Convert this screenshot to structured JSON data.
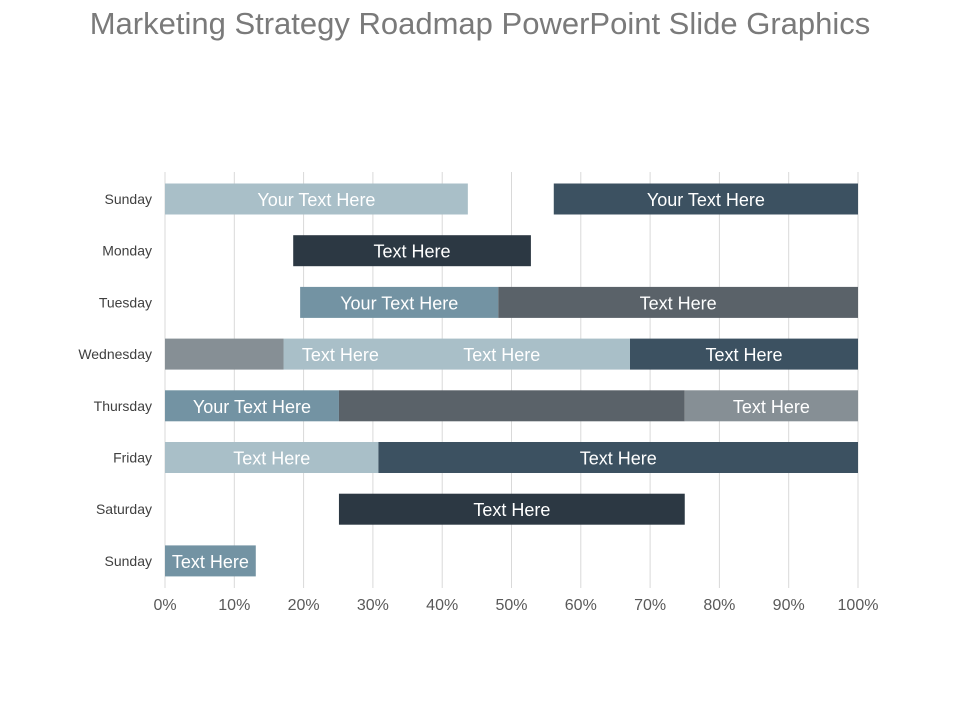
{
  "title": "Marketing Strategy Roadmap PowerPoint Slide Graphics",
  "colors": {
    "light": "#a9bfc8",
    "steel": "#7393a3",
    "gray": "#868f95",
    "slate": "#5a6269",
    "navy": "#3c5161",
    "dark": "#2c3843"
  },
  "chart_data": {
    "type": "bar",
    "orientation": "horizontal",
    "stacked": true,
    "title": "",
    "xlabel": "",
    "ylabel": "",
    "xlim": [
      0,
      100
    ],
    "x_ticks": [
      "0%",
      "10%",
      "20%",
      "30%",
      "40%",
      "50%",
      "60%",
      "70%",
      "80%",
      "90%",
      "100%"
    ],
    "grid": true,
    "legend": "none",
    "categories": [
      "Sunday",
      "Monday",
      "Tuesday",
      "Wednesday",
      "Thursday",
      "Friday",
      "Saturday",
      "Sunday"
    ],
    "rows": [
      {
        "category": "Sunday",
        "segments": [
          {
            "start": 0,
            "end": 43.7,
            "color": "light",
            "label": "Your Text Here"
          },
          {
            "start": 56.1,
            "end": 100,
            "color": "navy",
            "label": "Your Text Here"
          }
        ]
      },
      {
        "category": "Monday",
        "segments": [
          {
            "start": 18.5,
            "end": 52.8,
            "color": "dark",
            "label": "Text Here"
          }
        ]
      },
      {
        "category": "Tuesday",
        "segments": [
          {
            "start": 19.5,
            "end": 48.1,
            "color": "steel",
            "label": "Your Text Here"
          },
          {
            "start": 48.1,
            "end": 100,
            "color": "slate",
            "label": "Text Here"
          }
        ]
      },
      {
        "category": "Wednesday",
        "segments": [
          {
            "start": 0,
            "end": 17.1,
            "color": "gray",
            "label": ""
          },
          {
            "start": 17.1,
            "end": 67.1,
            "color": "light",
            "label": "Text Here",
            "label_at": 25.3
          },
          {
            "start": 17.1,
            "end": 67.1,
            "color": "light",
            "label": "Text Here",
            "label_at": 48.6,
            "overlay": true
          },
          {
            "start": 67.1,
            "end": 100,
            "color": "navy",
            "label": "Text Here"
          }
        ]
      },
      {
        "category": "Thursday",
        "segments": [
          {
            "start": 0,
            "end": 25.1,
            "color": "steel",
            "label": "Your Text Here"
          },
          {
            "start": 25.1,
            "end": 75.0,
            "color": "slate",
            "label": ""
          },
          {
            "start": 75.0,
            "end": 100,
            "color": "gray",
            "label": "Text Here"
          }
        ]
      },
      {
        "category": "Friday",
        "segments": [
          {
            "start": 0,
            "end": 30.8,
            "color": "light",
            "label": "Text Here"
          },
          {
            "start": 30.8,
            "end": 100,
            "color": "navy",
            "label": "Text Here"
          }
        ]
      },
      {
        "category": "Saturday",
        "segments": [
          {
            "start": 25.1,
            "end": 75.0,
            "color": "dark",
            "label": "Text Here"
          }
        ]
      },
      {
        "category": "Sunday",
        "segments": [
          {
            "start": 0,
            "end": 13.1,
            "color": "steel",
            "label": "Text Here"
          }
        ]
      }
    ]
  }
}
